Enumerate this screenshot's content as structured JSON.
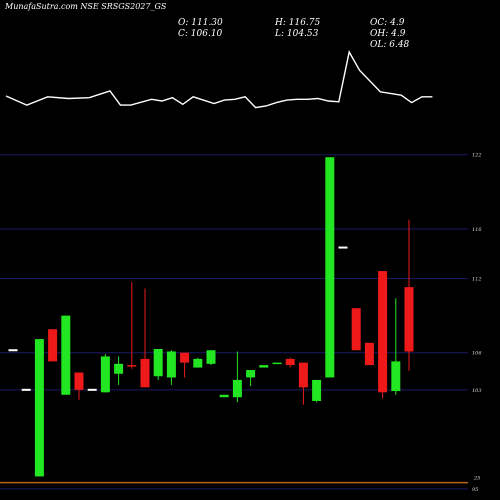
{
  "title": "MunafaSutra.com NSE SRSGS2027_GS",
  "ohlc": {
    "o": "O: 111.30",
    "h": "H: 116.75",
    "oc": "OC: 4.9",
    "c": "C: 106.10",
    "l": "L: 104.53",
    "oh": "OH: 4.9",
    "ol": "OL: 6.48"
  },
  "chart_data": {
    "type": "candlestick",
    "ylim": [
      94.5,
      124
    ],
    "yticks": [
      {
        "value": 122,
        "label": "122"
      },
      {
        "value": 116,
        "label": "116"
      },
      {
        "value": 112,
        "label": "112"
      },
      {
        "value": 106,
        "label": "106"
      },
      {
        "value": 103,
        "label": "103"
      },
      {
        "value": 95,
        "label": "95"
      }
    ],
    "reference_line": {
      "value": 95.5,
      "label": "25",
      "color": "#b8660b"
    },
    "colors": {
      "up": "#22e622",
      "down": "#ee1a1a",
      "neutral": "#ffffff",
      "grid": "#1a1a66",
      "volume": "#ffffff"
    },
    "candles": [
      {
        "open": 106.2,
        "close": 106.2,
        "high": 106.2,
        "low": 106.2
      },
      {
        "open": 103.0,
        "close": 103.0,
        "high": 103.0,
        "low": 103.0
      },
      {
        "open": 96.0,
        "close": 107.1,
        "high": 107.1,
        "low": 96.0
      },
      {
        "open": 107.9,
        "close": 105.3,
        "high": 107.9,
        "low": 105.3
      },
      {
        "open": 102.6,
        "close": 109.0,
        "high": 109.0,
        "low": 102.6
      },
      {
        "open": 104.4,
        "close": 103.0,
        "high": 104.4,
        "low": 102.2
      },
      {
        "open": 103.0,
        "close": 103.0,
        "high": 103.0,
        "low": 103.0
      },
      {
        "open": 102.8,
        "close": 105.7,
        "high": 105.9,
        "low": 102.8
      },
      {
        "open": 104.3,
        "close": 105.1,
        "high": 105.7,
        "low": 103.4
      },
      {
        "open": 105.0,
        "close": 104.9,
        "high": 111.7,
        "low": 104.7
      },
      {
        "open": 105.5,
        "close": 103.2,
        "high": 111.2,
        "low": 103.2
      },
      {
        "open": 104.1,
        "close": 106.3,
        "high": 106.3,
        "low": 103.8
      },
      {
        "open": 104.0,
        "close": 106.1,
        "high": 106.2,
        "low": 103.4
      },
      {
        "open": 106.0,
        "close": 105.2,
        "high": 106.0,
        "low": 104.0
      },
      {
        "open": 104.8,
        "close": 105.5,
        "high": 105.6,
        "low": 104.8
      },
      {
        "open": 105.1,
        "close": 106.2,
        "high": 106.2,
        "low": 105.0
      },
      {
        "open": 102.4,
        "close": 102.6,
        "high": 102.6,
        "low": 102.4
      },
      {
        "open": 102.4,
        "close": 103.8,
        "high": 106.1,
        "low": 102.0
      },
      {
        "open": 104.0,
        "close": 104.6,
        "high": 104.6,
        "low": 103.3
      },
      {
        "open": 104.8,
        "close": 105.0,
        "high": 105.0,
        "low": 104.8
      },
      {
        "open": 105.1,
        "close": 105.2,
        "high": 105.2,
        "low": 105.1
      },
      {
        "open": 105.5,
        "close": 105.0,
        "high": 105.6,
        "low": 104.8
      },
      {
        "open": 105.2,
        "close": 103.2,
        "high": 105.2,
        "low": 101.8
      },
      {
        "open": 102.1,
        "close": 103.8,
        "high": 103.8,
        "low": 102.0
      },
      {
        "open": 104.0,
        "close": 121.8,
        "high": 121.8,
        "low": 104.0
      },
      {
        "open": 114.5,
        "close": 114.5,
        "high": 114.5,
        "low": 114.5
      },
      {
        "open": 109.6,
        "close": 106.2,
        "high": 109.6,
        "low": 106.2
      },
      {
        "open": 106.8,
        "close": 105.0,
        "high": 106.8,
        "low": 105.0
      },
      {
        "open": 112.6,
        "close": 102.8,
        "high": 112.6,
        "low": 102.3
      },
      {
        "open": 102.9,
        "close": 105.3,
        "high": 110.4,
        "low": 102.6
      },
      {
        "open": 111.3,
        "close": 106.1,
        "high": 116.75,
        "low": 104.53
      }
    ],
    "volume_line": [
      {
        "bar": 0,
        "value": 47
      },
      {
        "bar": 2,
        "value": 36
      },
      {
        "bar": 4,
        "value": 46
      },
      {
        "bar": 6,
        "value": 44
      },
      {
        "bar": 8,
        "value": 45
      },
      {
        "bar": 10,
        "value": 53
      },
      {
        "bar": 11,
        "value": 36
      },
      {
        "bar": 12,
        "value": 36
      },
      {
        "bar": 14,
        "value": 43
      },
      {
        "bar": 15,
        "value": 41
      },
      {
        "bar": 16,
        "value": 45
      },
      {
        "bar": 17,
        "value": 37
      },
      {
        "bar": 18,
        "value": 46
      },
      {
        "bar": 20,
        "value": 38
      },
      {
        "bar": 21,
        "value": 42
      },
      {
        "bar": 22,
        "value": 43
      },
      {
        "bar": 23,
        "value": 46
      },
      {
        "bar": 24,
        "value": 33
      },
      {
        "bar": 25,
        "value": 35
      },
      {
        "bar": 26,
        "value": 39
      },
      {
        "bar": 27,
        "value": 42
      },
      {
        "bar": 28,
        "value": 43
      },
      {
        "bar": 29,
        "value": 43
      },
      {
        "bar": 30,
        "value": 44
      },
      {
        "bar": 31,
        "value": 41
      },
      {
        "bar": 32,
        "value": 40
      },
      {
        "bar": 33,
        "value": 100
      },
      {
        "bar": 34,
        "value": 78
      },
      {
        "bar": 36,
        "value": 52
      },
      {
        "bar": 38,
        "value": 48
      },
      {
        "bar": 39,
        "value": 39
      },
      {
        "bar": 40,
        "value": 46
      },
      {
        "bar": 41,
        "value": 46
      }
    ]
  }
}
